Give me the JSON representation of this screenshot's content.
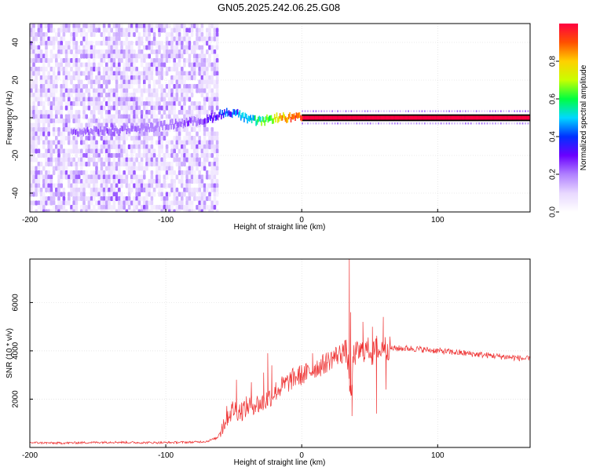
{
  "title": "GN05.2025.242.06.25.G08",
  "colors": {
    "snr_line": "#ee3333",
    "spectrum_ridge": "#d4004a",
    "grid": "#d8d8d8"
  },
  "chart_data": [
    {
      "type": "heatmap",
      "xlabel": "Height of straight line (km)",
      "ylabel": "Frequency (Hz)",
      "xlim": [
        -200,
        168
      ],
      "ylim": [
        -50,
        50
      ],
      "xticks": [
        -200,
        -100,
        0,
        100
      ],
      "yticks": [
        -40,
        -20,
        0,
        20,
        40
      ],
      "colorbar": {
        "label": "Normalized spectral amplitude",
        "range": [
          0,
          1
        ],
        "ticks": [
          "0.0",
          "0.2",
          "0.4",
          "0.6",
          "0.8"
        ],
        "colormap": [
          "#ffffff",
          "#e8d8ff",
          "#b080ff",
          "#6a00ff",
          "#0030ff",
          "#00d8ff",
          "#00ff40",
          "#c8ff00",
          "#ffd000",
          "#ff5000",
          "#ff0040"
        ]
      },
      "noise_region_x": [
        -200,
        -63
      ],
      "ridge": {
        "x": [
          -170,
          -150,
          -130,
          -110,
          -90,
          -70,
          -60,
          -50,
          -40,
          -30,
          -20,
          -10,
          0,
          50,
          100,
          168
        ],
        "frequency": [
          -8,
          -7,
          -6,
          -5,
          -3,
          -1,
          2,
          3,
          -1,
          -2,
          0,
          0,
          0,
          0,
          0,
          0
        ],
        "amplitude": [
          0.3,
          0.3,
          0.25,
          0.2,
          0.25,
          0.35,
          0.45,
          0.5,
          0.55,
          0.7,
          0.85,
          0.95,
          1.0,
          1.0,
          1.0,
          1.0
        ]
      }
    },
    {
      "type": "line",
      "xlabel": "Height of straight line (km)",
      "ylabel": "SNR (10 * v/v)",
      "xlim": [
        -200,
        168
      ],
      "ylim": [
        0,
        7800
      ],
      "xticks": [
        -200,
        -100,
        0,
        100
      ],
      "yticks": [
        2000,
        4000,
        6000
      ],
      "series": [
        {
          "x": [
            -200,
            -180,
            -160,
            -140,
            -120,
            -100,
            -80,
            -70,
            -62,
            -55,
            -50,
            -45,
            -40,
            -35,
            -30,
            -25,
            -20,
            -15,
            -10,
            -5,
            0,
            5,
            10,
            15,
            20,
            25,
            30,
            33,
            35,
            36,
            38,
            40,
            45,
            50,
            52,
            55,
            58,
            60,
            62,
            65,
            70,
            80,
            90,
            100,
            110,
            120,
            130,
            140,
            150,
            160,
            168
          ],
          "y": [
            200,
            180,
            200,
            220,
            200,
            200,
            220,
            250,
            400,
            1300,
            1600,
            1500,
            1700,
            1800,
            1800,
            2000,
            2300,
            2500,
            2700,
            2900,
            3000,
            3100,
            3300,
            3400,
            3600,
            3800,
            3900,
            4000,
            3000,
            1600,
            3800,
            3900,
            4000,
            4100,
            3800,
            4200,
            3900,
            4300,
            4100,
            4100,
            4100,
            4100,
            4050,
            4000,
            3950,
            3900,
            3850,
            3800,
            3750,
            3700,
            3650
          ],
          "spikes": [
            [
              -48,
              2800
            ],
            [
              -37,
              2700
            ],
            [
              -28,
              3100
            ],
            [
              -25,
              3900
            ],
            [
              -22,
              3400
            ],
            [
              8,
              3900
            ],
            [
              30,
              4300
            ],
            [
              35,
              7800
            ],
            [
              36,
              5600
            ],
            [
              37,
              1300
            ],
            [
              45,
              5200
            ],
            [
              52,
              5000
            ],
            [
              55,
              1400
            ],
            [
              60,
              5400
            ],
            [
              62,
              2400
            ]
          ]
        }
      ]
    }
  ]
}
